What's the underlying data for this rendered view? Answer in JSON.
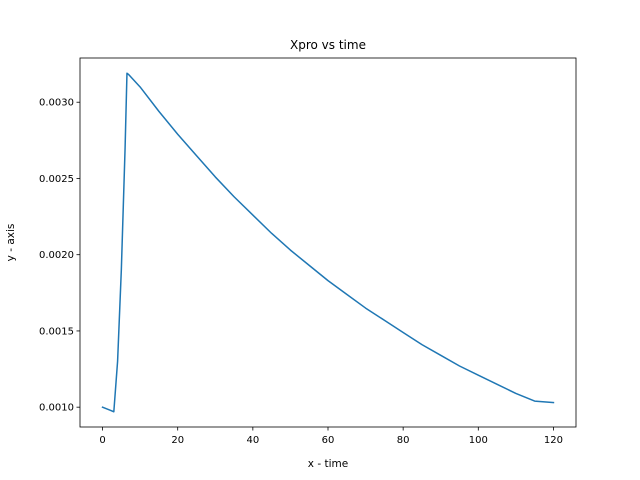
{
  "chart_data": {
    "type": "line",
    "title": "Xpro vs time",
    "xlabel": "x - time",
    "ylabel": "y - axis",
    "xlim": [
      -6,
      126
    ],
    "ylim": [
      0.00087,
      0.00329
    ],
    "xticks": [
      0,
      20,
      40,
      60,
      80,
      100,
      120
    ],
    "xtick_labels": [
      "0",
      "20",
      "40",
      "60",
      "80",
      "100",
      "120"
    ],
    "yticks": [
      0.001,
      0.0015,
      0.002,
      0.0025,
      0.003
    ],
    "ytick_labels": [
      "0.0010",
      "0.0015",
      "0.0020",
      "0.0025",
      "0.0030"
    ],
    "grid": false,
    "legend": false,
    "series": [
      {
        "color": "#1f77b4",
        "x": [
          0,
          1,
          2,
          3,
          4,
          5,
          6,
          6.5,
          7,
          10,
          15,
          20,
          25,
          30,
          35,
          40,
          45,
          50,
          55,
          60,
          65,
          70,
          75,
          80,
          85,
          90,
          95,
          100,
          105,
          110,
          115,
          120
        ],
        "y": [
          0.001,
          0.00099,
          0.00098,
          0.00097,
          0.0013,
          0.0019,
          0.0027,
          0.00319,
          0.00318,
          0.0031,
          0.00294,
          0.00279,
          0.00265,
          0.00251,
          0.00238,
          0.00226,
          0.00214,
          0.00203,
          0.00193,
          0.00183,
          0.00174,
          0.00165,
          0.00157,
          0.00149,
          0.00141,
          0.00134,
          0.00127,
          0.00121,
          0.00115,
          0.00109,
          0.00104,
          0.00103
        ]
      }
    ]
  }
}
